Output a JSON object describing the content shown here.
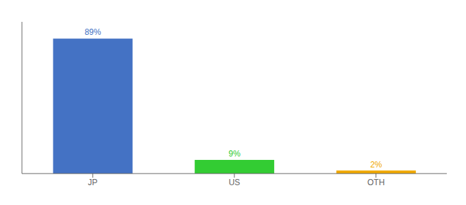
{
  "chart_data": {
    "type": "bar",
    "categories": [
      "JP",
      "US",
      "OTH"
    ],
    "values": [
      89,
      9,
      2
    ],
    "value_labels": [
      "89%",
      "9%",
      "2%"
    ],
    "colors": [
      "#4472c4",
      "#33cc33",
      "#f0a800"
    ],
    "ylim": [
      0,
      100
    ],
    "data_labels": true,
    "tick_labels": "x",
    "grid": false
  }
}
